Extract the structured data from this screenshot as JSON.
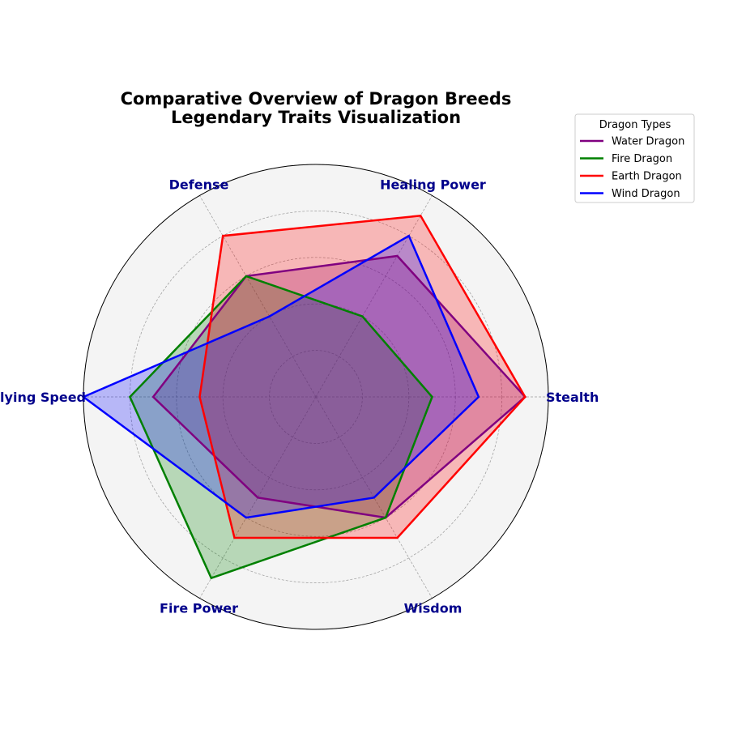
{
  "chart_data": {
    "type": "radar",
    "title_line1": "Comparative Overview of Dragon Breeds",
    "title_line2": "Legendary Traits Visualization",
    "axes": [
      "Stealth",
      "Healing Power",
      "Defense",
      "Flying Speed",
      "Fire Power",
      "Wisdom"
    ],
    "rlim": [
      0,
      10
    ],
    "grid": true,
    "legend_title": "Dragon Types",
    "legend_placement": "upper-right-outside",
    "series": [
      {
        "name": "Water Dragon",
        "values": [
          9,
          7,
          6,
          7,
          5,
          6
        ],
        "color": "#800080"
      },
      {
        "name": "Fire Dragon",
        "values": [
          5,
          4,
          6,
          8,
          9,
          6
        ],
        "color": "#008000"
      },
      {
        "name": "Earth Dragon",
        "values": [
          9,
          9,
          8,
          5,
          7,
          7
        ],
        "color": "#ff0000"
      },
      {
        "name": "Wind Dragon",
        "values": [
          7,
          8,
          4,
          10,
          6,
          5
        ],
        "color": "#0000ff"
      }
    ]
  }
}
